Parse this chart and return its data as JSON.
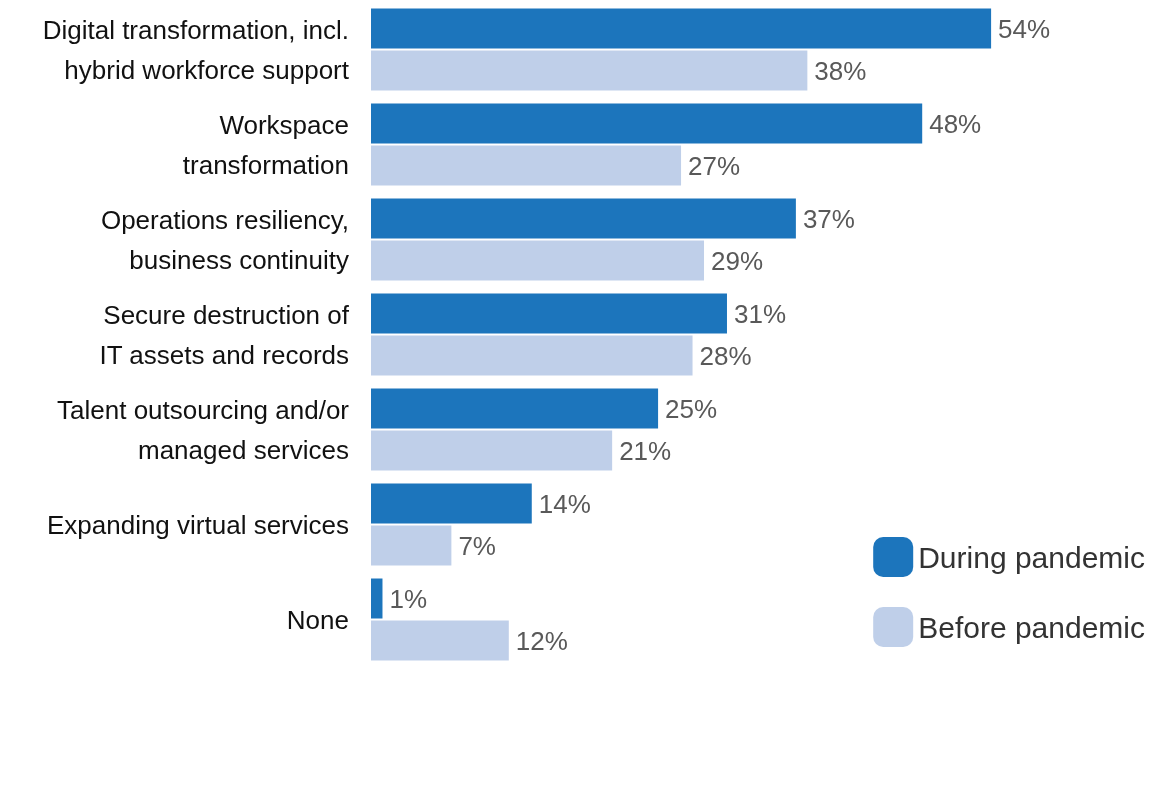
{
  "chart_data": {
    "type": "bar",
    "orientation": "horizontal",
    "categories": [
      "Digital transformation, incl.\nhybrid workforce support",
      "Workspace\ntransformation",
      "Operations resiliency,\nbusiness continuity",
      "Secure destruction of\nIT assets and records",
      "Talent outsourcing and/or\nmanaged services",
      "Expanding virtual services",
      "None"
    ],
    "series": [
      {
        "name": "During pandemic",
        "color": "#1c75bc",
        "values": [
          54,
          48,
          37,
          31,
          25,
          14,
          1
        ],
        "value_labels": [
          "54%",
          "48%",
          "37%",
          "31%",
          "25%",
          "14%",
          "1%"
        ]
      },
      {
        "name": "Before pandemic",
        "color": "#bfcfe9",
        "values": [
          38,
          27,
          29,
          28,
          21,
          7,
          12
        ],
        "value_labels": [
          "38%",
          "27%",
          "29%",
          "28%",
          "21%",
          "7%",
          "12%"
        ]
      }
    ],
    "legend": "bottom right",
    "grid": false
  }
}
